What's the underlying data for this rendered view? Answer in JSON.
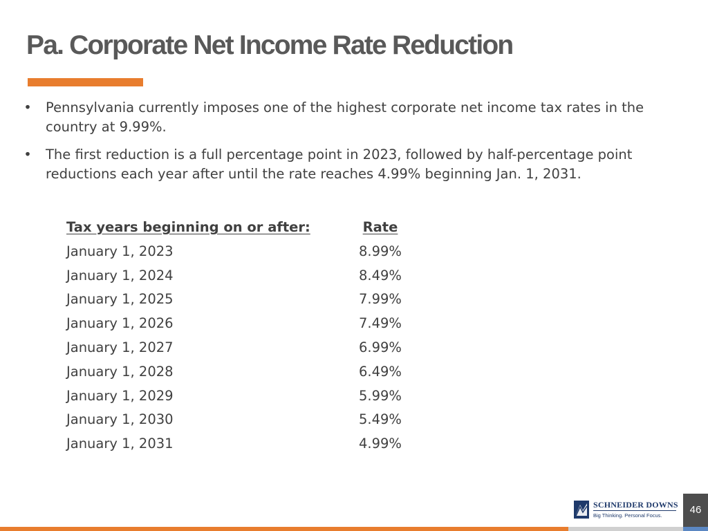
{
  "slide": {
    "title": "Pa. Corporate Net Income Rate Reduction",
    "page_number": "46",
    "accent_color": "#e87d2e",
    "text_color": "#404040"
  },
  "bullets": [
    "Pennsylvania currently imposes one of the highest corporate net income tax rates in the country at 9.99%.",
    "The first reduction is a full percentage point in 2023, followed by half-percentage point reductions each year after until the rate reaches 4.99% beginning Jan. 1, 2031."
  ],
  "rate_table": {
    "header_year": "Tax years beginning on or after:",
    "header_rate": "Rate",
    "rows": [
      {
        "year": "January 1, 2023",
        "rate": "8.99%"
      },
      {
        "year": "January 1, 2024",
        "rate": "8.49%"
      },
      {
        "year": "January 1, 2025",
        "rate": "7.99%"
      },
      {
        "year": "January 1, 2026",
        "rate": "7.49%"
      },
      {
        "year": "January 1, 2027",
        "rate": "6.99%"
      },
      {
        "year": "January 1, 2028",
        "rate": "6.49%"
      },
      {
        "year": "January 1, 2029",
        "rate": "5.99%"
      },
      {
        "year": "January 1, 2030",
        "rate": "5.49%"
      },
      {
        "year": "January 1, 2031",
        "rate": "4.99%"
      }
    ]
  },
  "logo": {
    "name": "SCHNEIDER DOWNS",
    "tagline": "Big Thinking. Personal Focus.",
    "icon": "schneider-downs-logo-icon"
  }
}
